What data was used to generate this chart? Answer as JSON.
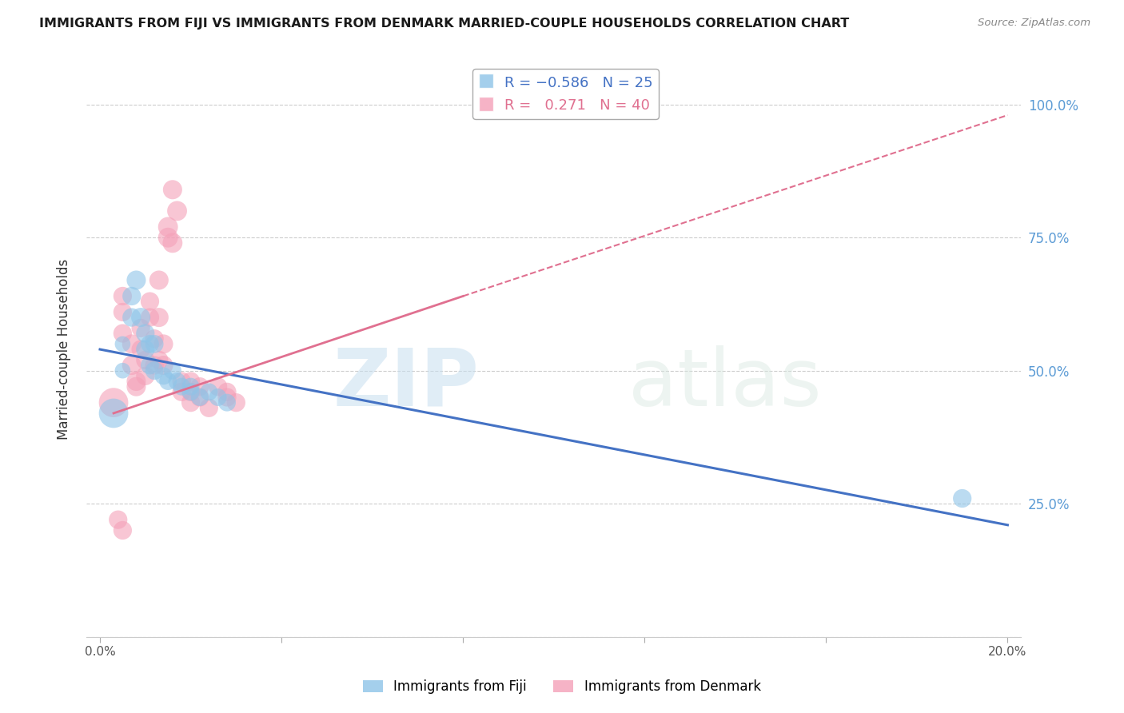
{
  "title": "IMMIGRANTS FROM FIJI VS IMMIGRANTS FROM DENMARK MARRIED-COUPLE HOUSEHOLDS CORRELATION CHART",
  "source": "Source: ZipAtlas.com",
  "ylabel": "Married-couple Households",
  "fiji_R": -0.586,
  "fiji_N": 25,
  "denmark_R": 0.271,
  "denmark_N": 40,
  "fiji_color": "#8ec4e8",
  "denmark_color": "#f4a0b8",
  "fiji_line_color": "#4472c4",
  "denmark_line_color": "#e07090",
  "right_axis_color": "#5b9bd5",
  "background_color": "#ffffff",
  "fiji_points": [
    [
      0.5,
      55
    ],
    [
      0.5,
      50
    ],
    [
      0.7,
      64
    ],
    [
      0.7,
      60
    ],
    [
      0.8,
      67
    ],
    [
      0.9,
      60
    ],
    [
      1.0,
      57
    ],
    [
      1.0,
      54
    ],
    [
      1.1,
      55
    ],
    [
      1.1,
      51
    ],
    [
      1.2,
      55
    ],
    [
      1.2,
      50
    ],
    [
      1.4,
      49
    ],
    [
      1.5,
      48
    ],
    [
      1.6,
      50
    ],
    [
      1.7,
      48
    ],
    [
      1.8,
      47
    ],
    [
      2.0,
      47
    ],
    [
      2.0,
      46
    ],
    [
      2.2,
      45
    ],
    [
      2.4,
      46
    ],
    [
      2.6,
      45
    ],
    [
      2.8,
      44
    ],
    [
      0.3,
      42
    ],
    [
      19.0,
      26
    ]
  ],
  "denmark_points": [
    [
      0.3,
      44
    ],
    [
      0.5,
      57
    ],
    [
      0.5,
      61
    ],
    [
      0.5,
      64
    ],
    [
      0.7,
      55
    ],
    [
      0.7,
      51
    ],
    [
      0.8,
      48
    ],
    [
      0.8,
      47
    ],
    [
      0.9,
      58
    ],
    [
      0.9,
      54
    ],
    [
      1.0,
      52
    ],
    [
      1.0,
      49
    ],
    [
      1.1,
      63
    ],
    [
      1.1,
      60
    ],
    [
      1.2,
      56
    ],
    [
      1.2,
      51
    ],
    [
      1.3,
      67
    ],
    [
      1.3,
      60
    ],
    [
      1.4,
      55
    ],
    [
      1.4,
      51
    ],
    [
      1.5,
      75
    ],
    [
      1.5,
      77
    ],
    [
      1.6,
      74
    ],
    [
      1.6,
      84
    ],
    [
      1.7,
      80
    ],
    [
      1.8,
      46
    ],
    [
      1.8,
      48
    ],
    [
      2.0,
      48
    ],
    [
      2.0,
      46
    ],
    [
      2.0,
      44
    ],
    [
      2.2,
      47
    ],
    [
      2.2,
      45
    ],
    [
      2.4,
      43
    ],
    [
      2.6,
      47
    ],
    [
      2.8,
      46
    ],
    [
      2.8,
      45
    ],
    [
      0.4,
      22
    ],
    [
      0.5,
      20
    ],
    [
      1.3,
      52
    ],
    [
      3.0,
      44
    ]
  ],
  "fiji_bubble_sizes": [
    200,
    200,
    280,
    280,
    300,
    300,
    280,
    280,
    270,
    270,
    270,
    270,
    250,
    250,
    250,
    250,
    250,
    250,
    250,
    250,
    250,
    250,
    250,
    700,
    280
  ],
  "denmark_bubble_sizes": [
    700,
    280,
    280,
    280,
    300,
    300,
    300,
    300,
    280,
    280,
    280,
    280,
    280,
    280,
    280,
    280,
    300,
    300,
    300,
    300,
    320,
    320,
    320,
    300,
    320,
    280,
    280,
    280,
    280,
    280,
    280,
    280,
    280,
    280,
    280,
    280,
    280,
    280,
    280,
    280
  ],
  "x_min": 0.0,
  "x_max": 20.0,
  "y_min": 0.0,
  "y_max": 108.0,
  "y_ticks": [
    0,
    25,
    50,
    75,
    100
  ],
  "x_ticks": [
    0,
    4,
    8,
    12,
    16,
    20
  ],
  "watermark_text": "ZIPatlas",
  "legend_fiji_label": "R = -0.586   N = 25",
  "legend_denmark_label": "R =  0.271   N = 40",
  "bottom_legend_fiji": "Immigrants from Fiji",
  "bottom_legend_denmark": "Immigrants from Denmark"
}
